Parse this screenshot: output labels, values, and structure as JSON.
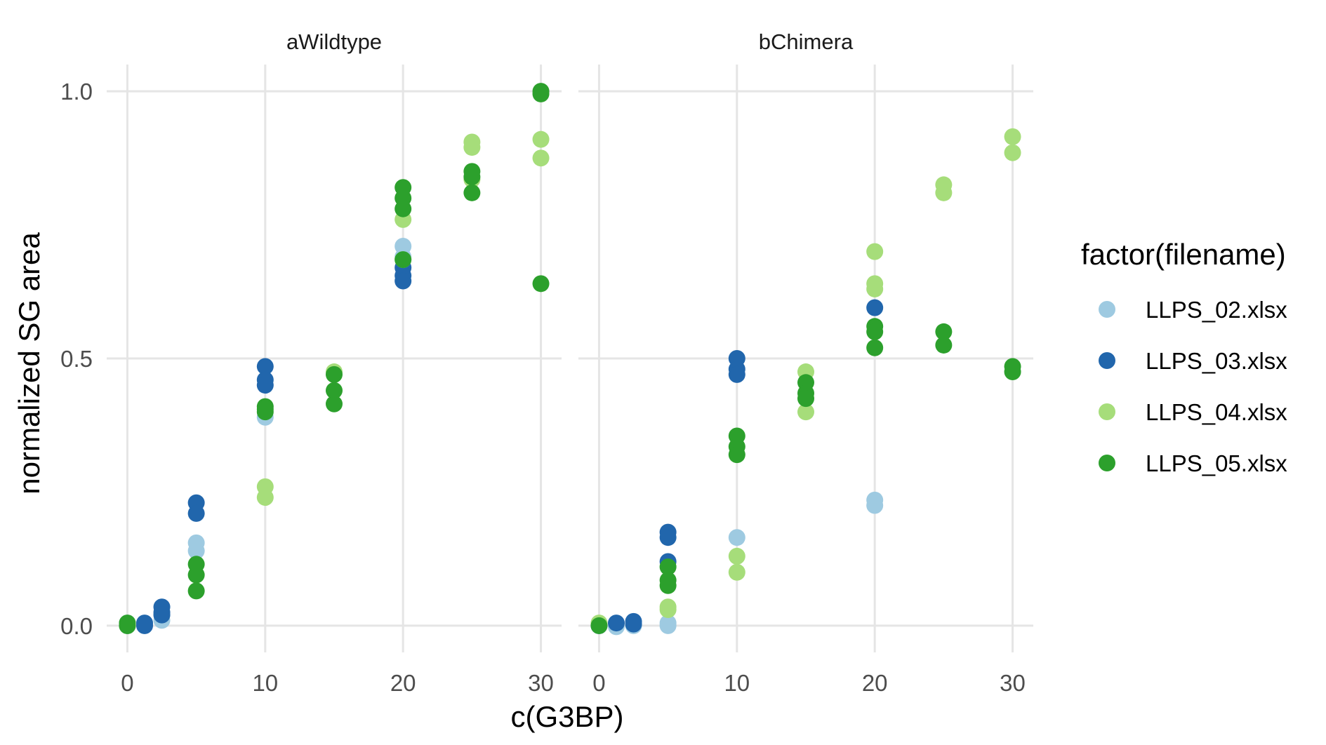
{
  "chart_data": {
    "type": "scatter",
    "xlabel": "c(G3BP)",
    "ylabel": "normalized SG area",
    "xlim": [
      -1.5,
      31.5
    ],
    "ylim": [
      -0.05,
      1.05
    ],
    "x_ticks": [
      0,
      10,
      20,
      30
    ],
    "y_ticks": [
      0.0,
      0.5,
      1.0
    ],
    "y_tick_labels": [
      "0.0",
      "0.5",
      "1.0"
    ],
    "grid": true,
    "legend": {
      "title": "factor(filename)",
      "position": "right",
      "entries": [
        {
          "label": "LLPS_02.xlsx",
          "color": "#9ecae1"
        },
        {
          "label": "LLPS_03.xlsx",
          "color": "#2166ac"
        },
        {
          "label": "LLPS_04.xlsx",
          "color": "#a6dd7a"
        },
        {
          "label": "LLPS_05.xlsx",
          "color": "#2ca02c"
        }
      ]
    },
    "panels": [
      {
        "title": "aWildtype",
        "series": [
          {
            "name": "LLPS_02.xlsx",
            "x": [
              0,
              0,
              1.25,
              2.5,
              2.5,
              5,
              5,
              10,
              20,
              20
            ],
            "y": [
              0.0,
              0.005,
              0.0,
              0.01,
              0.02,
              0.155,
              0.14,
              0.39,
              0.71,
              0.69
            ]
          },
          {
            "name": "LLPS_03.xlsx",
            "x": [
              0,
              1.25,
              1.25,
              2.5,
              2.5,
              2.5,
              5,
              5,
              10,
              10,
              10,
              20,
              20,
              20
            ],
            "y": [
              0.0,
              0.0,
              0.005,
              0.035,
              0.025,
              0.02,
              0.23,
              0.21,
              0.485,
              0.46,
              0.45,
              0.67,
              0.655,
              0.645
            ]
          },
          {
            "name": "LLPS_04.xlsx",
            "x": [
              0,
              10,
              10,
              15,
              20,
              20,
              25,
              25,
              25,
              30,
              30
            ],
            "y": [
              0.0,
              0.26,
              0.24,
              0.475,
              0.76,
              0.685,
              0.905,
              0.895,
              0.835,
              0.91,
              0.875
            ]
          },
          {
            "name": "LLPS_05.xlsx",
            "x": [
              0,
              0,
              5,
              5,
              5,
              10,
              10,
              10,
              15,
              15,
              15,
              20,
              20,
              20,
              20,
              25,
              25,
              25,
              30,
              30,
              30
            ],
            "y": [
              0.0,
              0.005,
              0.115,
              0.095,
              0.065,
              0.41,
              0.4,
              0.405,
              0.47,
              0.44,
              0.415,
              0.82,
              0.8,
              0.78,
              0.685,
              0.85,
              0.84,
              0.81,
              1.0,
              0.995,
              0.64
            ]
          }
        ]
      },
      {
        "title": "bChimera",
        "series": [
          {
            "name": "LLPS_02.xlsx",
            "x": [
              0,
              1.25,
              2.5,
              5,
              5,
              10,
              20,
              20
            ],
            "y": [
              0.0,
              -0.002,
              0.0,
              0.005,
              0.0,
              0.165,
              0.235,
              0.225
            ]
          },
          {
            "name": "LLPS_03.xlsx",
            "x": [
              0,
              1.25,
              2.5,
              2.5,
              5,
              5,
              5,
              10,
              10,
              10,
              20
            ],
            "y": [
              0.0,
              0.005,
              0.008,
              0.003,
              0.175,
              0.165,
              0.12,
              0.5,
              0.48,
              0.47,
              0.595
            ]
          },
          {
            "name": "LLPS_04.xlsx",
            "x": [
              0,
              5,
              5,
              10,
              10,
              15,
              15,
              20,
              20,
              20,
              25,
              25,
              30,
              30
            ],
            "y": [
              0.005,
              0.035,
              0.03,
              0.13,
              0.1,
              0.475,
              0.4,
              0.7,
              0.64,
              0.63,
              0.825,
              0.81,
              0.915,
              0.885
            ]
          },
          {
            "name": "LLPS_05.xlsx",
            "x": [
              0,
              5,
              5,
              5,
              10,
              10,
              10,
              15,
              15,
              15,
              20,
              20,
              20,
              25,
              25,
              30,
              30
            ],
            "y": [
              0.0,
              0.11,
              0.085,
              0.075,
              0.355,
              0.335,
              0.32,
              0.455,
              0.435,
              0.425,
              0.56,
              0.55,
              0.52,
              0.55,
              0.525,
              0.485,
              0.475
            ]
          }
        ]
      }
    ]
  }
}
